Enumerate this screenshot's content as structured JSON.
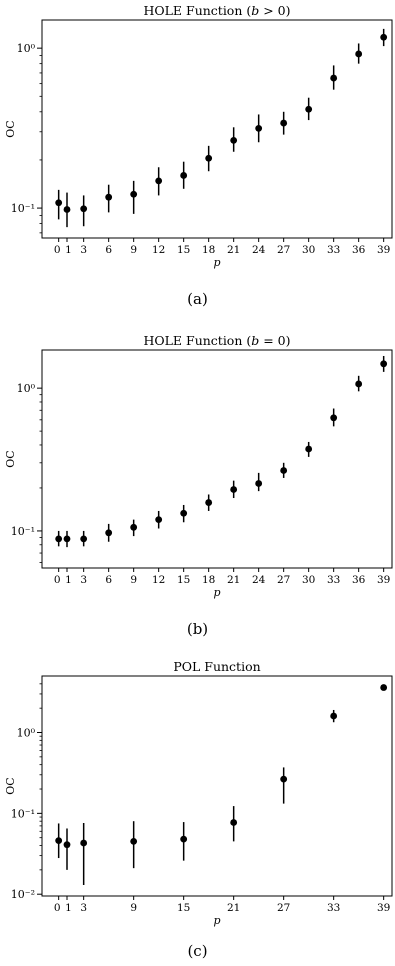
{
  "chart_data": [
    {
      "type": "scatter",
      "title": "HOLE Function (b > 0)",
      "title_parts": [
        "HOLE Function (",
        "b",
        " > 0)"
      ],
      "xlabel": "p",
      "ylabel": "OC",
      "yscale": "log",
      "xlim": [
        -2,
        40
      ],
      "ylim": [
        0.065,
        1.5
      ],
      "xticks": [
        0,
        1,
        3,
        6,
        9,
        12,
        15,
        18,
        21,
        24,
        27,
        30,
        33,
        36,
        39
      ],
      "xtick_labels": [
        "0",
        "1",
        "3",
        "6",
        "9",
        "12",
        "15",
        "18",
        "21",
        "24",
        "27",
        "30",
        "33",
        "36",
        "39"
      ],
      "yticks": [
        0.1,
        1
      ],
      "ytick_labels": [
        "10⁻¹",
        "10⁰"
      ],
      "x": [
        0,
        1,
        3,
        6,
        9,
        12,
        15,
        18,
        21,
        24,
        27,
        30,
        33,
        36,
        39
      ],
      "y": [
        0.108,
        0.098,
        0.099,
        0.117,
        0.122,
        0.148,
        0.16,
        0.205,
        0.265,
        0.315,
        0.34,
        0.415,
        0.65,
        0.92,
        1.17
      ],
      "err_low": [
        0.085,
        0.076,
        0.077,
        0.094,
        0.092,
        0.12,
        0.132,
        0.17,
        0.225,
        0.258,
        0.288,
        0.355,
        0.55,
        0.8,
        1.03
      ],
      "err_high": [
        0.13,
        0.125,
        0.12,
        0.14,
        0.148,
        0.18,
        0.195,
        0.245,
        0.32,
        0.385,
        0.4,
        0.49,
        0.78,
        1.07,
        1.32
      ],
      "caption": "(a)"
    },
    {
      "type": "scatter",
      "title": "HOLE Function (b = 0)",
      "title_parts": [
        "HOLE Function (",
        "b",
        " = 0)"
      ],
      "xlabel": "p",
      "ylabel": "OC",
      "yscale": "log",
      "xlim": [
        -2,
        40
      ],
      "ylim": [
        0.055,
        1.85
      ],
      "xticks": [
        0,
        1,
        3,
        6,
        9,
        12,
        15,
        18,
        21,
        24,
        27,
        30,
        33,
        36,
        39
      ],
      "xtick_labels": [
        "0",
        "1",
        "3",
        "6",
        "9",
        "12",
        "15",
        "18",
        "21",
        "24",
        "27",
        "30",
        "33",
        "36",
        "39"
      ],
      "yticks": [
        0.1,
        1
      ],
      "ytick_labels": [
        "10⁻¹",
        "10⁰"
      ],
      "x": [
        0,
        1,
        3,
        6,
        9,
        12,
        15,
        18,
        21,
        24,
        27,
        30,
        33,
        36,
        39
      ],
      "y": [
        0.088,
        0.088,
        0.088,
        0.097,
        0.106,
        0.12,
        0.133,
        0.158,
        0.195,
        0.215,
        0.265,
        0.375,
        0.62,
        1.07,
        1.48
      ],
      "err_low": [
        0.078,
        0.077,
        0.078,
        0.084,
        0.092,
        0.104,
        0.115,
        0.138,
        0.17,
        0.19,
        0.235,
        0.33,
        0.54,
        0.95,
        1.3
      ],
      "err_high": [
        0.1,
        0.1,
        0.1,
        0.112,
        0.12,
        0.138,
        0.152,
        0.18,
        0.225,
        0.255,
        0.3,
        0.42,
        0.72,
        1.22,
        1.68
      ],
      "caption": "(b)"
    },
    {
      "type": "scatter",
      "title": "POL Function",
      "xlabel": "p",
      "ylabel": "OC",
      "yscale": "log",
      "xlim": [
        -2,
        40
      ],
      "ylim": [
        0.0095,
        5
      ],
      "xticks": [
        0,
        1,
        3,
        9,
        15,
        21,
        27,
        33,
        39
      ],
      "xtick_labels": [
        "0",
        "1",
        "3",
        "9",
        "15",
        "21",
        "27",
        "33",
        "39"
      ],
      "yticks": [
        0.01,
        0.1,
        1
      ],
      "ytick_labels": [
        "10⁻²",
        "10⁻¹",
        "10⁰"
      ],
      "x": [
        0,
        1,
        3,
        9,
        15,
        21,
        27,
        33,
        39
      ],
      "y": [
        0.046,
        0.041,
        0.043,
        0.045,
        0.048,
        0.077,
        0.265,
        1.6,
        3.6
      ],
      "err_low": [
        0.028,
        0.02,
        0.013,
        0.021,
        0.026,
        0.045,
        0.132,
        1.34,
        3.36
      ],
      "err_high": [
        0.075,
        0.065,
        0.076,
        0.08,
        0.078,
        0.123,
        0.37,
        1.9,
        3.9
      ],
      "caption": "(c)"
    }
  ]
}
